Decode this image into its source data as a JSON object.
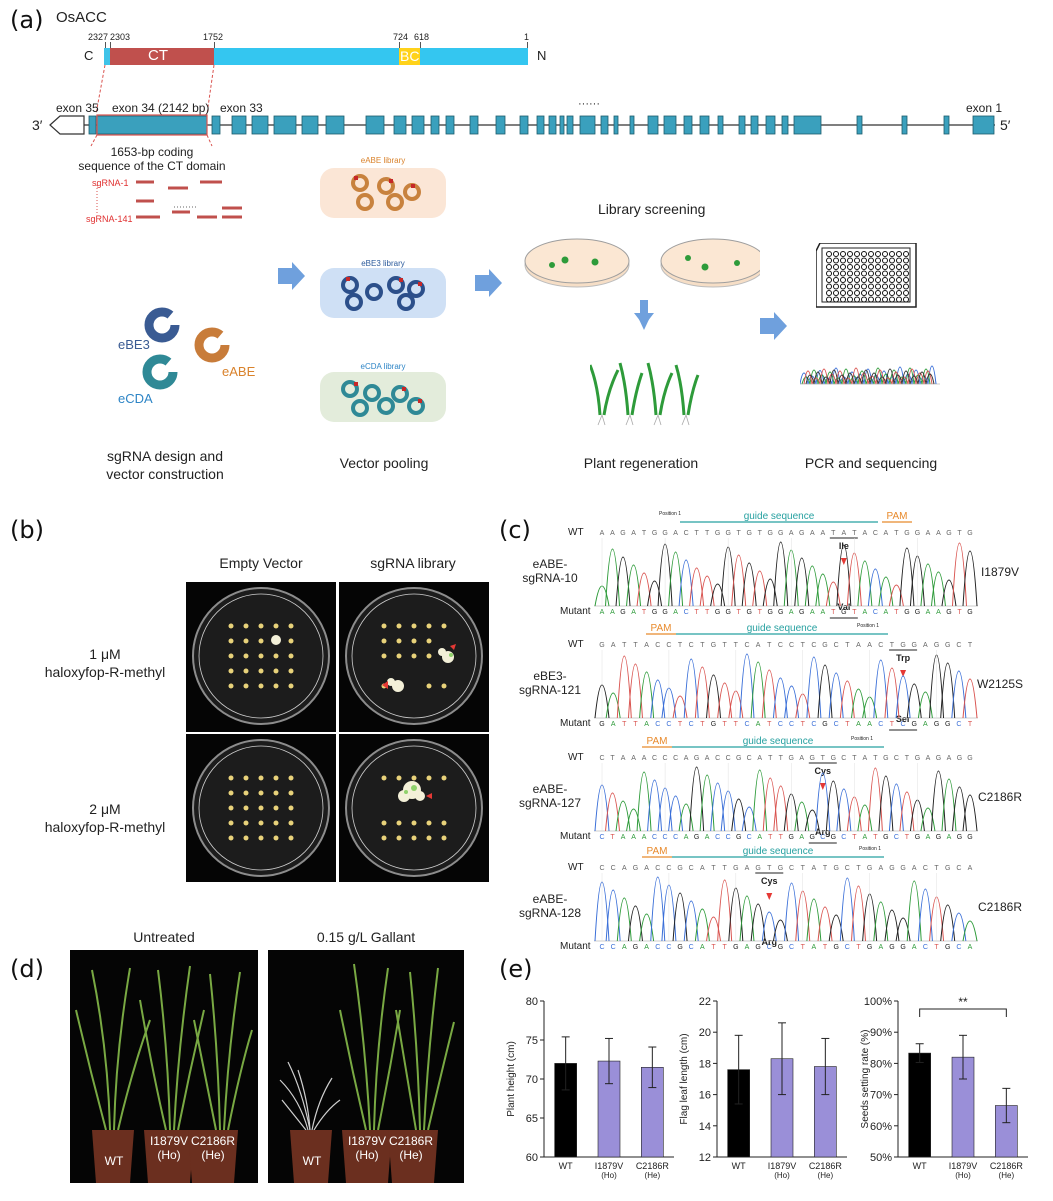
{
  "panel_a": {
    "label": "(a)",
    "protein_name": "OsACC",
    "domain_ticks": [
      "2327",
      "2303",
      "1752",
      "724",
      "618",
      "1"
    ],
    "terminal_c": "C",
    "terminal_n": "N",
    "domain_ct": "CT",
    "domain_bc": "BC",
    "gene_left": "3′",
    "gene_right": "5′",
    "exon35": "exon 35",
    "exon34": "exon 34 (2142 bp)",
    "exon33": "exon 33",
    "exon1": "exon 1",
    "dots": "······",
    "coding_note_line1": "1653-bp coding",
    "coding_note_line2": "sequence of the CT domain",
    "sgrna_first": "sgRNA-1",
    "sgrna_last": "sgRNA-141",
    "ebe3": "eBE3",
    "eabe": "eABE",
    "ecda": "eCDA",
    "eabe_lib": "eABE library",
    "ebe3_lib": "eBE3 library",
    "ecda_lib": "eCDA library",
    "library_screening": "Library screening",
    "step1_line1": "sgRNA design and",
    "step1_line2": "vector construction",
    "step2": "Vector pooling",
    "step3": "Plant regeneration",
    "step4": "PCR and sequencing"
  },
  "panel_b": {
    "label": "(b)",
    "col1": "Empty Vector",
    "col2": "sgRNA  library",
    "row1_line1": "1 μM",
    "row1_line2": "haloxyfop-R-methyl",
    "row2_line1": "2 μM",
    "row2_line2": "haloxyfop-R-methyl"
  },
  "panel_c": {
    "label": "(c)",
    "rows": [
      {
        "editor": "eABE-",
        "sgrna": "sgRNA-10",
        "mutation": "I1879V",
        "wt_label": "WT",
        "mut_label": "Mutant",
        "wt_aa": "Ile",
        "mut_aa": "Val",
        "pam": "PAM",
        "guide": "guide sequence",
        "position": "Position 1",
        "wt_seq": "A A G A T G G A C T T G G T G T G G A G A A T A T A C A T G G A A G T G",
        "mut_seq": "A A G A T G G A C T T G G T G T G G A G A A T G T A C A T G G A A G T G"
      },
      {
        "editor": "eBE3-",
        "sgrna": "sgRNA-121",
        "mutation": "W2125S",
        "wt_label": "WT",
        "mut_label": "Mutant",
        "wt_aa": "Trp",
        "mut_aa": "Ser",
        "pam": "PAM",
        "guide": "guide sequence",
        "position": "Position 1",
        "wt_seq": "G A T T A C C T C T G T T C A T C C T C G C T A A C T G G A G G C T",
        "mut_seq": "G A T T A C C T C T G T T C A T C C T C G C T A A C T C G A G G C T"
      },
      {
        "editor": "eABE-",
        "sgrna": "sgRNA-127",
        "mutation": "C2186R",
        "wt_label": "WT",
        "mut_label": "Mutant",
        "wt_aa": "Cys",
        "mut_aa": "Arg",
        "pam": "PAM",
        "guide": "guide sequence",
        "position": "Position 1",
        "wt_seq": "C T A A A C C C A G A C C G C A T T G A G T G C T A T G C T G A G A G G",
        "mut_seq": "C T A A A C C C A G A C C G C A T T G A G C G C T A T G C T G A G A G G"
      },
      {
        "editor": "eABE-",
        "sgrna": "sgRNA-128",
        "mutation": "C2186R",
        "wt_label": "WT",
        "mut_label": "Mutant",
        "wt_aa": "Cys",
        "mut_aa": "Arg",
        "pam": "PAM",
        "guide": "guide sequence",
        "position": "Position 1",
        "wt_seq": "C C A G A C C G C A T T G A G T G C T A T G C T G A G G A C T G C A",
        "mut_seq": "C C A G A C C G C A T T G A G C G C T A T G C T G A G G A C T G C A"
      }
    ]
  },
  "panel_d": {
    "label": "(d)",
    "photo1_title": "Untreated",
    "photo2_title": "0.15 g/L Gallant",
    "pot_wt": "WT",
    "pot_i_line1": "I1879V",
    "pot_i_line2": "(Ho)",
    "pot_c_line1": "C2186R",
    "pot_c_line2": "(He)"
  },
  "panel_e": {
    "label": "(e)",
    "significance": "**",
    "colors": {
      "wt": "#000000",
      "mutant": "#9a8fd8"
    },
    "chart_data": [
      {
        "type": "bar",
        "ylabel": "Plant height (cm)",
        "ylim": [
          60,
          80
        ],
        "yticks": [
          60,
          65,
          70,
          75,
          80
        ],
        "categories": [
          [
            "WT",
            ""
          ],
          [
            "I1879V",
            "(Ho)"
          ],
          [
            "C2186R",
            "(He)"
          ]
        ],
        "values": [
          72.0,
          72.3,
          71.5
        ],
        "errors": [
          3.4,
          2.9,
          2.6
        ]
      },
      {
        "type": "bar",
        "ylabel": "Flag leaf length (cm)",
        "ylim": [
          12,
          22
        ],
        "yticks": [
          12,
          14,
          16,
          18,
          20,
          22
        ],
        "categories": [
          [
            "WT",
            ""
          ],
          [
            "I1879V",
            "(Ho)"
          ],
          [
            "C2186R",
            "(He)"
          ]
        ],
        "values": [
          17.6,
          18.3,
          17.8
        ],
        "errors": [
          2.2,
          2.3,
          1.8
        ]
      },
      {
        "type": "bar",
        "ylabel": "Seeds setting rate (%)",
        "ylim": [
          50,
          100
        ],
        "yticks": [
          50,
          60,
          70,
          80,
          90,
          100
        ],
        "tick_format": "percent",
        "categories": [
          [
            "WT",
            ""
          ],
          [
            "I1879V",
            "(Ho)"
          ],
          [
            "C2186R",
            "(He)"
          ]
        ],
        "values": [
          83.3,
          82.0,
          66.5
        ],
        "errors": [
          3.0,
          7.0,
          5.5
        ]
      }
    ]
  }
}
